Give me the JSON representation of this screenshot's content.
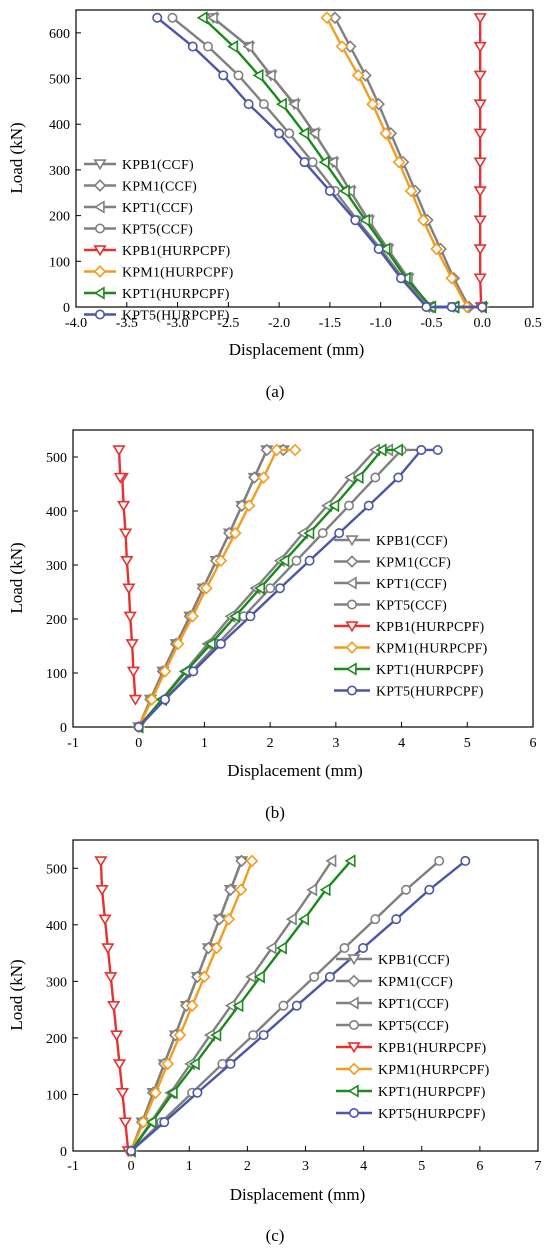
{
  "chart_data": [
    {
      "id": "a",
      "type": "line",
      "caption": "(a)",
      "xlabel": "Displacement (mm)",
      "ylabel": "Load (kN)",
      "xlim": [
        -4.0,
        0.5
      ],
      "ylim": [
        0,
        650
      ],
      "xticks": [
        "-4.0",
        "-3.5",
        "-3.0",
        "-2.5",
        "-2.0",
        "-1.5",
        "-1.0",
        "-0.5",
        "0.0",
        "0.5"
      ],
      "yticks": [
        "0",
        "100",
        "200",
        "300",
        "400",
        "500",
        "600"
      ],
      "grid": false,
      "legend": "bottom-left",
      "series": [
        {
          "name": "KPB1(CCF)",
          "color": "#808080",
          "marker": "triangle-down",
          "x": [
            -2.65,
            -2.3,
            -2.08,
            -1.85,
            -1.65,
            -1.47,
            -1.3,
            -1.12,
            -0.93,
            -0.73,
            -0.52,
            -0.28,
            0
          ],
          "y": [
            633,
            570,
            507,
            444,
            380,
            317,
            254,
            190,
            127,
            63,
            0,
            0,
            0
          ]
        },
        {
          "name": "KPM1(CCF)",
          "color": "#808080",
          "marker": "diamond",
          "x": [
            -1.45,
            -1.3,
            -1.15,
            -1.02,
            -0.9,
            -0.78,
            -0.66,
            -0.54,
            -0.41,
            -0.28,
            -0.13,
            0
          ],
          "y": [
            633,
            570,
            507,
            444,
            380,
            317,
            254,
            190,
            127,
            63,
            0,
            0
          ]
        },
        {
          "name": "KPT1(CCF)",
          "color": "#808080",
          "marker": "triangle-left",
          "x": [
            -2.65,
            -2.3,
            -2.08,
            -1.85,
            -1.65,
            -1.47,
            -1.3,
            -1.12,
            -0.93,
            -0.73,
            -0.52,
            -0.28,
            0
          ],
          "y": [
            633,
            570,
            507,
            444,
            380,
            317,
            254,
            190,
            127,
            63,
            0,
            0,
            0
          ]
        },
        {
          "name": "KPT5(CCF)",
          "color": "#808080",
          "marker": "circle",
          "x": [
            -3.05,
            -2.7,
            -2.4,
            -2.15,
            -1.9,
            -1.67,
            -1.45,
            -1.23,
            -1.0,
            -0.78,
            -0.52,
            -0.28,
            0
          ],
          "y": [
            633,
            570,
            507,
            444,
            380,
            317,
            254,
            190,
            127,
            63,
            0,
            0,
            0
          ]
        },
        {
          "name": "KPB1(HURPCPF)",
          "color": "#e8302f",
          "marker": "triangle-down",
          "x": [
            -0.02,
            -0.02,
            -0.02,
            -0.02,
            -0.02,
            -0.02,
            -0.02,
            -0.02,
            -0.02,
            -0.02,
            -0.01
          ],
          "y": [
            633,
            570,
            507,
            444,
            380,
            317,
            254,
            190,
            127,
            63,
            0
          ]
        },
        {
          "name": "KPM1(HURPCPF)",
          "color": "#f39c1f",
          "marker": "diamond",
          "x": [
            -1.53,
            -1.38,
            -1.22,
            -1.08,
            -0.95,
            -0.82,
            -0.7,
            -0.58,
            -0.45,
            -0.3,
            -0.15,
            0
          ],
          "y": [
            633,
            570,
            507,
            444,
            380,
            317,
            254,
            190,
            127,
            63,
            0,
            0
          ]
        },
        {
          "name": "KPT1(HURPCPF)",
          "color": "#1a8a1a",
          "marker": "triangle-left",
          "x": [
            -2.75,
            -2.45,
            -2.2,
            -1.97,
            -1.75,
            -1.55,
            -1.35,
            -1.15,
            -0.95,
            -0.75,
            -0.5,
            -0.27,
            0
          ],
          "y": [
            633,
            570,
            507,
            444,
            380,
            317,
            254,
            190,
            127,
            63,
            0,
            0,
            0
          ]
        },
        {
          "name": "KPT5(HURPCPF)",
          "color": "#4a56a8",
          "marker": "circle",
          "x": [
            -3.2,
            -2.85,
            -2.55,
            -2.3,
            -2.0,
            -1.75,
            -1.5,
            -1.25,
            -1.02,
            -0.8,
            -0.55,
            -0.3,
            0
          ],
          "y": [
            633,
            570,
            507,
            444,
            380,
            317,
            254,
            190,
            127,
            63,
            0,
            0,
            0
          ]
        }
      ]
    },
    {
      "id": "b",
      "type": "line",
      "caption": "(b)",
      "xlabel": "Displacement (mm)",
      "ylabel": "Load (kN)",
      "xlim": [
        -1,
        6
      ],
      "ylim": [
        0,
        550
      ],
      "xticks": [
        "-1",
        "0",
        "1",
        "2",
        "3",
        "4",
        "5",
        "6"
      ],
      "yticks": [
        "0",
        "100",
        "200",
        "300",
        "400",
        "500"
      ],
      "grid": false,
      "legend": "bottom-right",
      "series": [
        {
          "name": "KPB1(CCF)",
          "color": "#808080",
          "marker": "triangle-down",
          "x": [
            0,
            0.18,
            0.37,
            0.57,
            0.78,
            0.98,
            1.18,
            1.38,
            1.57,
            1.76,
            1.95,
            2.2
          ],
          "y": [
            0,
            51,
            103,
            154,
            205,
            257,
            308,
            359,
            410,
            462,
            513,
            513
          ]
        },
        {
          "name": "KPM1(CCF)",
          "color": "#808080",
          "marker": "diamond",
          "x": [
            0,
            0.18,
            0.37,
            0.57,
            0.78,
            0.98,
            1.18,
            1.38,
            1.57,
            1.76,
            1.95,
            2.2
          ],
          "y": [
            0,
            51,
            103,
            154,
            205,
            257,
            308,
            359,
            410,
            462,
            513,
            513
          ]
        },
        {
          "name": "KPT1(CCF)",
          "color": "#808080",
          "marker": "triangle-left",
          "x": [
            0,
            0.35,
            0.7,
            1.05,
            1.4,
            1.78,
            2.15,
            2.5,
            2.87,
            3.22,
            3.6,
            3.8
          ],
          "y": [
            0,
            51,
            103,
            154,
            205,
            257,
            308,
            359,
            410,
            462,
            513,
            513
          ]
        },
        {
          "name": "KPT5(CCF)",
          "color": "#808080",
          "marker": "circle",
          "x": [
            0,
            0.4,
            0.8,
            1.2,
            1.6,
            2.0,
            2.4,
            2.8,
            3.2,
            3.6,
            4.0,
            4.3
          ],
          "y": [
            0,
            51,
            103,
            154,
            205,
            257,
            308,
            359,
            410,
            462,
            513,
            513
          ]
        },
        {
          "name": "KPB1(HURPCPF)",
          "color": "#e8302f",
          "marker": "triangle-down",
          "x": [
            -0.05,
            -0.08,
            -0.1,
            -0.13,
            -0.15,
            -0.18,
            -0.2,
            -0.23,
            -0.25,
            -0.28,
            -0.3
          ],
          "y": [
            51,
            103,
            154,
            205,
            257,
            308,
            359,
            410,
            462,
            462,
            513
          ]
        },
        {
          "name": "KPM1(HURPCPF)",
          "color": "#f39c1f",
          "marker": "diamond",
          "x": [
            0,
            0.2,
            0.4,
            0.6,
            0.82,
            1.03,
            1.25,
            1.47,
            1.68,
            1.9,
            2.1,
            2.38
          ],
          "y": [
            0,
            51,
            103,
            154,
            205,
            257,
            308,
            359,
            410,
            462,
            513,
            513
          ]
        },
        {
          "name": "KPT1(HURPCPF)",
          "color": "#1a8a1a",
          "marker": "triangle-left",
          "x": [
            0,
            0.36,
            0.72,
            1.1,
            1.47,
            1.85,
            2.22,
            2.6,
            2.98,
            3.35,
            3.7,
            3.95
          ],
          "y": [
            0,
            51,
            103,
            154,
            205,
            257,
            308,
            359,
            410,
            462,
            513,
            513
          ]
        },
        {
          "name": "KPT5(HURPCPF)",
          "color": "#4a56a8",
          "marker": "circle",
          "x": [
            0,
            0.4,
            0.83,
            1.25,
            1.7,
            2.15,
            2.6,
            3.05,
            3.5,
            3.95,
            4.3,
            4.55
          ],
          "y": [
            0,
            51,
            103,
            154,
            205,
            257,
            308,
            359,
            410,
            462,
            513,
            513
          ]
        }
      ]
    },
    {
      "id": "c",
      "type": "line",
      "caption": "(c)",
      "xlabel": "Displacement (mm)",
      "ylabel": "Load (kN)",
      "xlim": [
        -1,
        7
      ],
      "ylim": [
        0,
        550
      ],
      "xticks": [
        "-1",
        "0",
        "1",
        "2",
        "3",
        "4",
        "5",
        "6",
        "7"
      ],
      "yticks": [
        "0",
        "100",
        "200",
        "300",
        "400",
        "500"
      ],
      "grid": false,
      "legend": "bottom-right",
      "series": [
        {
          "name": "KPB1(CCF)",
          "color": "#808080",
          "marker": "triangle-down",
          "x": [
            0,
            0.19,
            0.38,
            0.57,
            0.76,
            0.95,
            1.14,
            1.33,
            1.52,
            1.71,
            1.9
          ],
          "y": [
            0,
            51,
            103,
            154,
            205,
            257,
            308,
            359,
            410,
            462,
            513
          ]
        },
        {
          "name": "KPM1(CCF)",
          "color": "#808080",
          "marker": "diamond",
          "x": [
            0,
            0.19,
            0.38,
            0.57,
            0.76,
            0.95,
            1.14,
            1.33,
            1.52,
            1.71,
            1.9
          ],
          "y": [
            0,
            51,
            103,
            154,
            205,
            257,
            308,
            359,
            410,
            462,
            513
          ]
        },
        {
          "name": "KPT1(CCF)",
          "color": "#808080",
          "marker": "triangle-left",
          "x": [
            0,
            0.34,
            0.68,
            1.02,
            1.36,
            1.72,
            2.07,
            2.42,
            2.77,
            3.12,
            3.45
          ],
          "y": [
            0,
            51,
            103,
            154,
            205,
            257,
            308,
            359,
            410,
            462,
            513
          ]
        },
        {
          "name": "KPT5(CCF)",
          "color": "#808080",
          "marker": "circle",
          "x": [
            0,
            0.52,
            1.05,
            1.57,
            2.1,
            2.62,
            3.15,
            3.67,
            4.2,
            4.73,
            5.3
          ],
          "y": [
            0,
            51,
            103,
            154,
            205,
            257,
            308,
            359,
            410,
            462,
            513
          ]
        },
        {
          "name": "KPB1(HURPCPF)",
          "color": "#e8302f",
          "marker": "triangle-down",
          "x": [
            -0.05,
            -0.1,
            -0.15,
            -0.2,
            -0.25,
            -0.3,
            -0.35,
            -0.4,
            -0.45,
            -0.5,
            -0.52
          ],
          "y": [
            0,
            51,
            103,
            154,
            205,
            257,
            308,
            359,
            410,
            462,
            513
          ]
        },
        {
          "name": "KPM1(HURPCPF)",
          "color": "#f39c1f",
          "marker": "diamond",
          "x": [
            0,
            0.21,
            0.42,
            0.63,
            0.84,
            1.05,
            1.26,
            1.47,
            1.68,
            1.89,
            2.08
          ],
          "y": [
            0,
            51,
            103,
            154,
            205,
            257,
            308,
            359,
            410,
            462,
            513
          ]
        },
        {
          "name": "KPT1(HURPCPF)",
          "color": "#1a8a1a",
          "marker": "triangle-left",
          "x": [
            0,
            0.36,
            0.72,
            1.1,
            1.47,
            1.85,
            2.22,
            2.6,
            2.98,
            3.35,
            3.78
          ],
          "y": [
            0,
            51,
            103,
            154,
            205,
            257,
            308,
            359,
            410,
            462,
            513
          ]
        },
        {
          "name": "KPT5(HURPCPF)",
          "color": "#4a56a8",
          "marker": "circle",
          "x": [
            0,
            0.57,
            1.14,
            1.71,
            2.28,
            2.85,
            3.42,
            3.99,
            4.56,
            5.13,
            5.75
          ],
          "y": [
            0,
            51,
            103,
            154,
            205,
            257,
            308,
            359,
            410,
            462,
            513
          ]
        }
      ]
    }
  ]
}
